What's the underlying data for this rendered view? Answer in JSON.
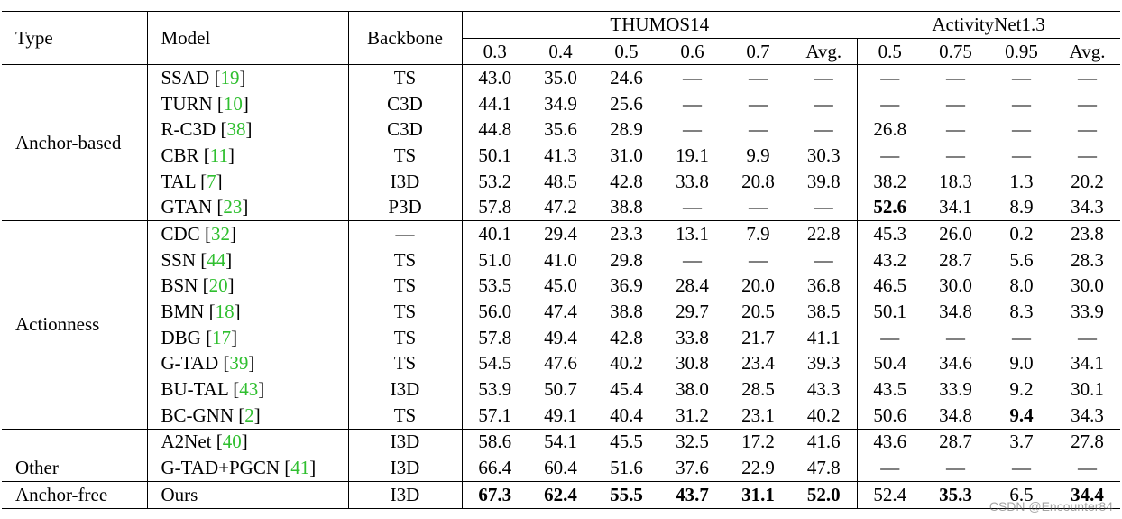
{
  "headers": {
    "type": "Type",
    "model": "Model",
    "backbone": "Backbone",
    "thumos": "THUMOS14",
    "anet": "ActivityNet1.3",
    "thumos_cols": [
      "0.3",
      "0.4",
      "0.5",
      "0.6",
      "0.7",
      "Avg."
    ],
    "anet_cols": [
      "0.5",
      "0.75",
      "0.95",
      "Avg."
    ]
  },
  "groups": [
    {
      "type": "Anchor-based",
      "type_valign": "middle",
      "rows": [
        {
          "model": "SSAD",
          "ref": "19",
          "backbone": "TS",
          "thumos": [
            "43.0",
            "35.0",
            "24.6",
            "—",
            "—",
            "—"
          ],
          "anet": [
            "—",
            "—",
            "—",
            "—"
          ],
          "bold": []
        },
        {
          "model": "TURN",
          "ref": "10",
          "backbone": "C3D",
          "thumos": [
            "44.1",
            "34.9",
            "25.6",
            "—",
            "—",
            "—"
          ],
          "anet": [
            "—",
            "—",
            "—",
            "—"
          ],
          "bold": []
        },
        {
          "model": "R-C3D",
          "ref": "38",
          "backbone": "C3D",
          "thumos": [
            "44.8",
            "35.6",
            "28.9",
            "—",
            "—",
            "—"
          ],
          "anet": [
            "26.8",
            "—",
            "—",
            "—"
          ],
          "bold": []
        },
        {
          "model": "CBR",
          "ref": "11",
          "backbone": "TS",
          "thumos": [
            "50.1",
            "41.3",
            "31.0",
            "19.1",
            "9.9",
            "30.3"
          ],
          "anet": [
            "—",
            "—",
            "—",
            "—"
          ],
          "bold": []
        },
        {
          "model": "TAL",
          "ref": "7",
          "backbone": "I3D",
          "thumos": [
            "53.2",
            "48.5",
            "42.8",
            "33.8",
            "20.8",
            "39.8"
          ],
          "anet": [
            "38.2",
            "18.3",
            "1.3",
            "20.2"
          ],
          "bold": []
        },
        {
          "model": "GTAN",
          "ref": "23",
          "backbone": "P3D",
          "thumos": [
            "57.8",
            "47.2",
            "38.8",
            "—",
            "—",
            "—"
          ],
          "anet": [
            "52.6",
            "34.1",
            "8.9",
            "34.3"
          ],
          "bold": [
            6
          ]
        }
      ]
    },
    {
      "type": "Actionness",
      "type_valign": "middle",
      "rows": [
        {
          "model": "CDC",
          "ref": "32",
          "backbone": "—",
          "thumos": [
            "40.1",
            "29.4",
            "23.3",
            "13.1",
            "7.9",
            "22.8"
          ],
          "anet": [
            "45.3",
            "26.0",
            "0.2",
            "23.8"
          ],
          "bold": []
        },
        {
          "model": "SSN",
          "ref": "44",
          "backbone": "TS",
          "thumos": [
            "51.0",
            "41.0",
            "29.8",
            "—",
            "—",
            "—"
          ],
          "anet": [
            "43.2",
            "28.7",
            "5.6",
            "28.3"
          ],
          "bold": []
        },
        {
          "model": "BSN",
          "ref": "20",
          "backbone": "TS",
          "thumos": [
            "53.5",
            "45.0",
            "36.9",
            "28.4",
            "20.0",
            "36.8"
          ],
          "anet": [
            "46.5",
            "30.0",
            "8.0",
            "30.0"
          ],
          "bold": []
        },
        {
          "model": "BMN",
          "ref": "18",
          "backbone": "TS",
          "thumos": [
            "56.0",
            "47.4",
            "38.8",
            "29.7",
            "20.5",
            "38.5"
          ],
          "anet": [
            "50.1",
            "34.8",
            "8.3",
            "33.9"
          ],
          "bold": []
        },
        {
          "model": "DBG",
          "ref": "17",
          "backbone": "TS",
          "thumos": [
            "57.8",
            "49.4",
            "42.8",
            "33.8",
            "21.7",
            "41.1"
          ],
          "anet": [
            "—",
            "—",
            "—",
            "—"
          ],
          "bold": []
        },
        {
          "model": "G-TAD",
          "ref": "39",
          "backbone": "TS",
          "thumos": [
            "54.5",
            "47.6",
            "40.2",
            "30.8",
            "23.4",
            "39.3"
          ],
          "anet": [
            "50.4",
            "34.6",
            "9.0",
            "34.1"
          ],
          "bold": []
        },
        {
          "model": "BU-TAL",
          "ref": "43",
          "backbone": "I3D",
          "thumos": [
            "53.9",
            "50.7",
            "45.4",
            "38.0",
            "28.5",
            "43.3"
          ],
          "anet": [
            "43.5",
            "33.9",
            "9.2",
            "30.1"
          ],
          "bold": []
        },
        {
          "model": "BC-GNN",
          "ref": "2",
          "backbone": "TS",
          "thumos": [
            "57.1",
            "49.1",
            "40.4",
            "31.2",
            "23.1",
            "40.2"
          ],
          "anet": [
            "50.6",
            "34.8",
            "9.4",
            "34.3"
          ],
          "bold": [
            8
          ]
        }
      ]
    },
    {
      "type": "Other",
      "type_valign": "bottom",
      "rows": [
        {
          "model": "A2Net",
          "ref": "40",
          "backbone": "I3D",
          "thumos": [
            "58.6",
            "54.1",
            "45.5",
            "32.5",
            "17.2",
            "41.6"
          ],
          "anet": [
            "43.6",
            "28.7",
            "3.7",
            "27.8"
          ],
          "bold": []
        },
        {
          "model": "G-TAD+PGCN",
          "ref": "41",
          "backbone": "I3D",
          "thumos": [
            "66.4",
            "60.4",
            "51.6",
            "37.6",
            "22.9",
            "47.8"
          ],
          "anet": [
            "—",
            "—",
            "—",
            "—"
          ],
          "bold": []
        }
      ]
    },
    {
      "type": "Anchor-free",
      "type_valign": "middle",
      "rows": [
        {
          "model": "Ours",
          "ref": "",
          "backbone": "I3D",
          "thumos": [
            "67.3",
            "62.4",
            "55.5",
            "43.7",
            "31.1",
            "52.0"
          ],
          "anet": [
            "52.4",
            "35.3",
            "6.5",
            "34.4"
          ],
          "bold": [
            0,
            1,
            2,
            3,
            4,
            5,
            7,
            9
          ]
        }
      ]
    }
  ],
  "watermark": "CSDN @Encounter84",
  "colors": {
    "citation": "#2fbf2f",
    "text": "#000000"
  }
}
